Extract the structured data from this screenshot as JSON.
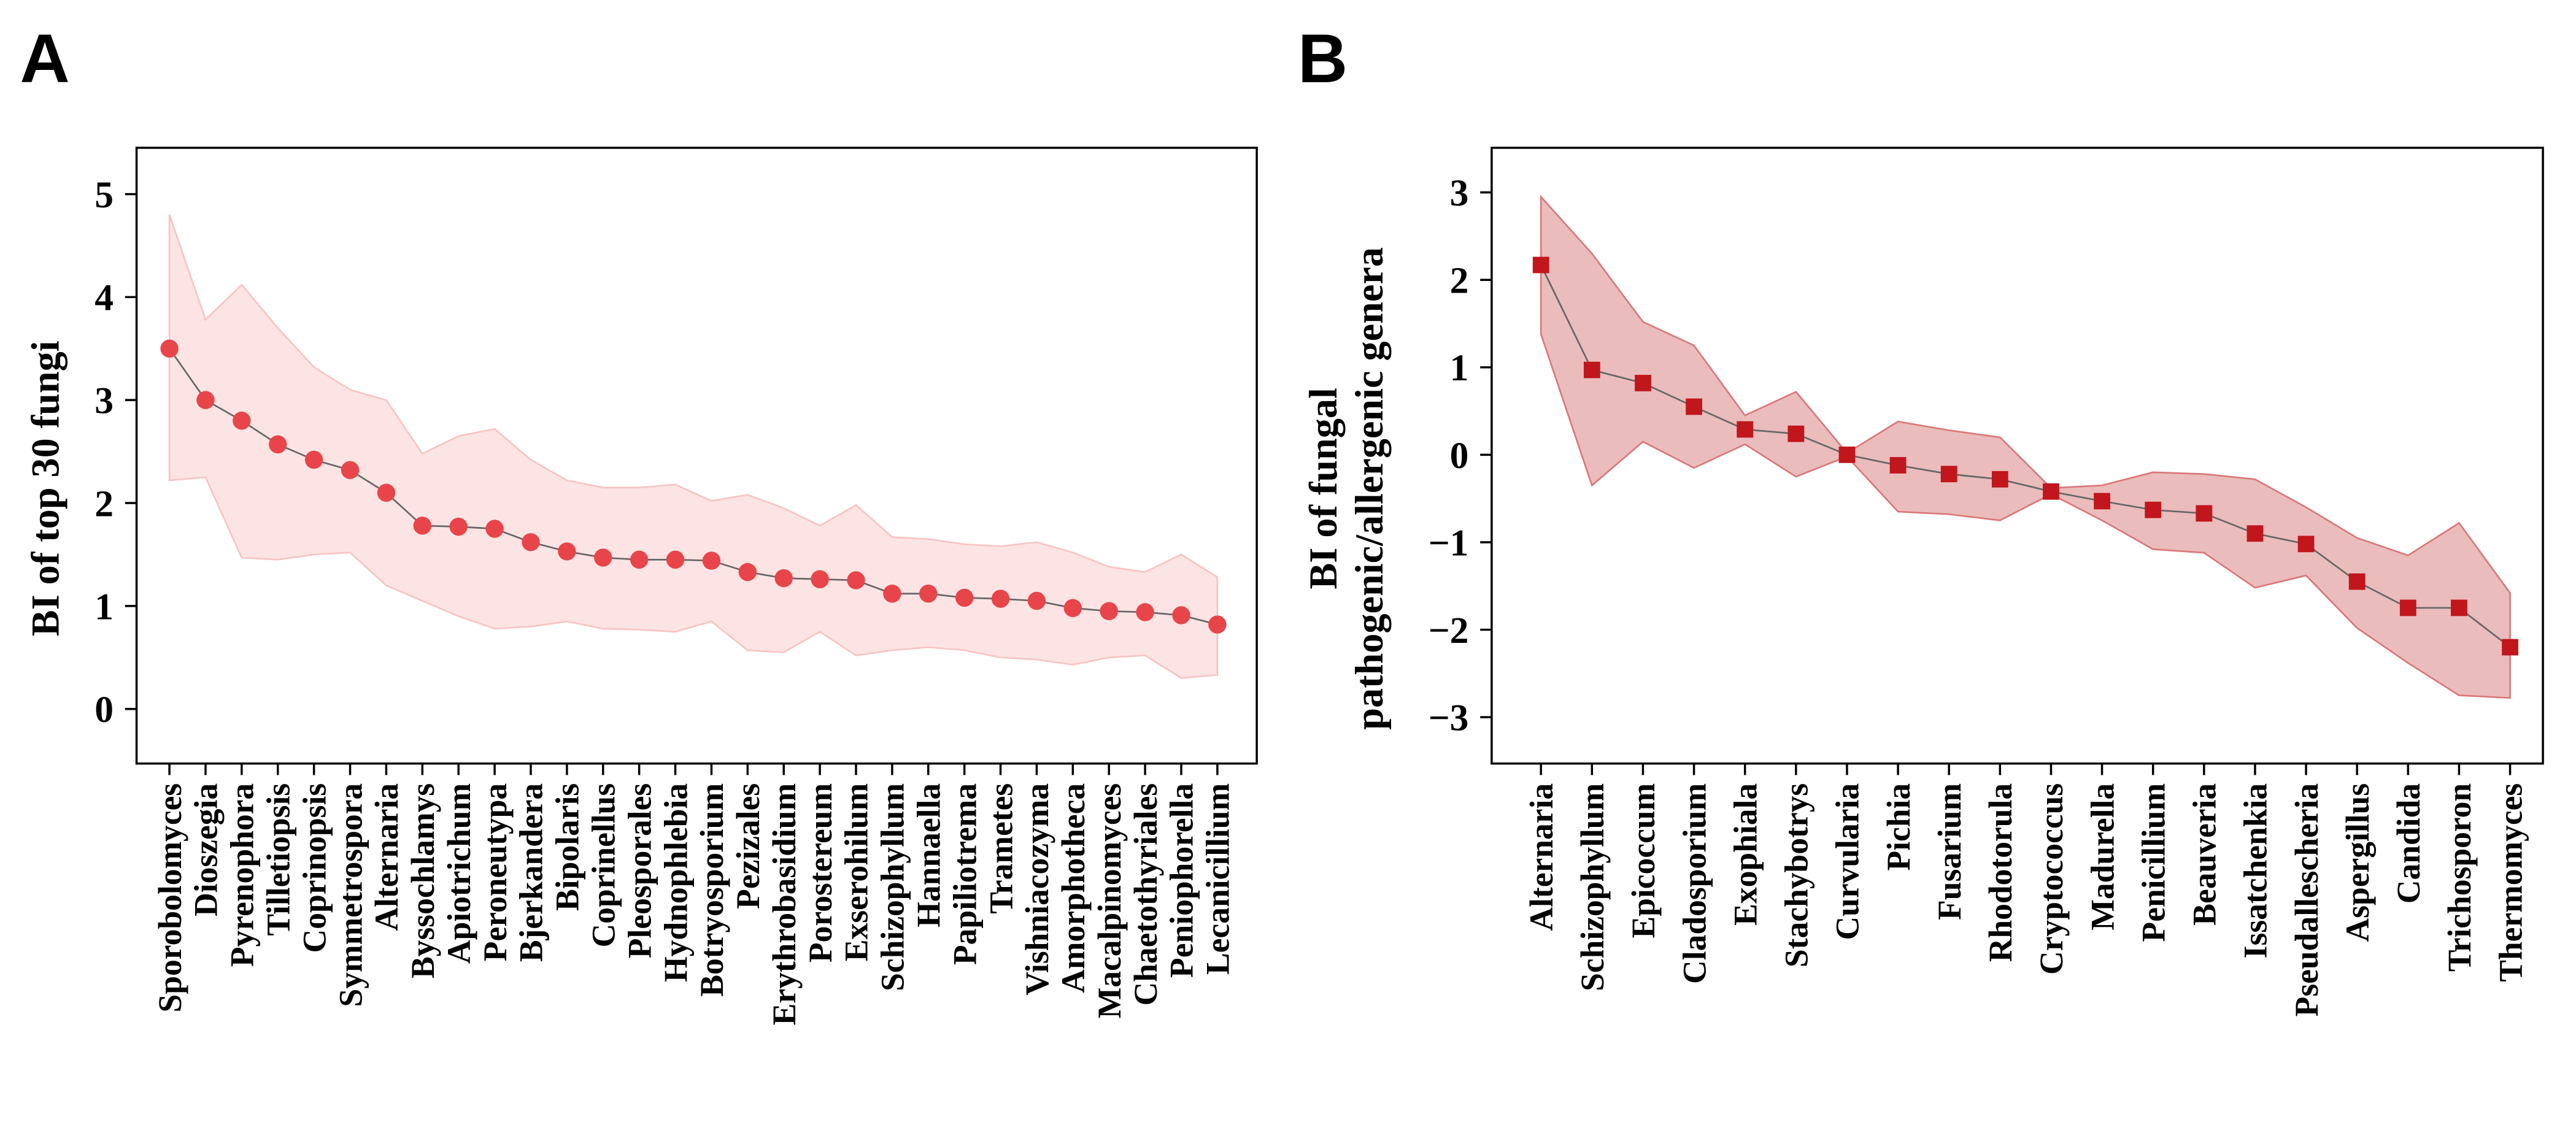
{
  "chart_data": [
    {
      "type": "line",
      "panel_label": "A",
      "ylabel": [
        "BI of top 30 fungi"
      ],
      "categories": [
        "Sporobolomyces",
        "Dioszegia",
        "Pyrenophora",
        "Tilletiopsis",
        "Coprinopsis",
        "Symmetrospora",
        "Alternaria",
        "Byssochlamys",
        "Apiotrichum",
        "Peroneutypa",
        "Bjerkandera",
        "Bipolaris",
        "Coprinellus",
        "Pleosporales",
        "Hydnophlebia",
        "Botryosporium",
        "Pezizales",
        "Erythrobasidium",
        "Porostereum",
        "Exserohilum",
        "Schizophyllum",
        "Hannaella",
        "Papiliotrema",
        "Trametes",
        "Vishniacozyma",
        "Amorphotheca",
        "Macalpinomyces",
        "Chaetothyriales",
        "Peniophorella",
        "Lecanicillium"
      ],
      "values": [
        3.5,
        3.0,
        2.8,
        2.57,
        2.42,
        2.32,
        2.1,
        1.78,
        1.77,
        1.75,
        1.62,
        1.53,
        1.47,
        1.45,
        1.45,
        1.44,
        1.33,
        1.27,
        1.26,
        1.25,
        1.12,
        1.12,
        1.08,
        1.07,
        1.05,
        0.98,
        0.95,
        0.94,
        0.91,
        0.82
      ],
      "band_upper": [
        4.8,
        3.78,
        4.12,
        3.7,
        3.32,
        3.1,
        3.0,
        2.48,
        2.65,
        2.72,
        2.42,
        2.22,
        2.15,
        2.15,
        2.18,
        2.02,
        2.08,
        1.95,
        1.78,
        1.98,
        1.67,
        1.65,
        1.6,
        1.58,
        1.62,
        1.52,
        1.38,
        1.33,
        1.5,
        1.28
      ],
      "band_lower": [
        2.22,
        2.25,
        1.47,
        1.45,
        1.5,
        1.52,
        1.2,
        1.05,
        0.9,
        0.78,
        0.8,
        0.85,
        0.78,
        0.77,
        0.75,
        0.85,
        0.57,
        0.55,
        0.75,
        0.52,
        0.57,
        0.6,
        0.57,
        0.5,
        0.48,
        0.43,
        0.5,
        0.52,
        0.3,
        0.33
      ],
      "color": "#e8454a",
      "marker": "circle",
      "band_color": "#fde4e4",
      "band_edge": "#f7c4c4",
      "ylim": [
        -0.53,
        5.45
      ],
      "yticks": [
        0,
        1,
        2,
        3,
        4,
        5
      ]
    },
    {
      "type": "line",
      "panel_label": "B",
      "ylabel": [
        "BI of fungal",
        "pathogenic/allergenic genera"
      ],
      "categories": [
        "Alternaria",
        "Schizophyllum",
        "Epicoccum",
        "Cladosporium",
        "Exophiala",
        "Stachybotrys",
        "Curvularia",
        "Pichia",
        "Fusarium",
        "Rhodotorula",
        "Cryptococcus",
        "Madurella",
        "Penicillium",
        "Beauveria",
        "Issatchenkia",
        "Pseudallescheria",
        "Aspergillus",
        "Candida",
        "Trichosporon",
        "Thermomyces"
      ],
      "values": [
        2.17,
        0.97,
        0.82,
        0.55,
        0.29,
        0.24,
        0.0,
        -0.12,
        -0.22,
        -0.28,
        -0.42,
        -0.53,
        -0.63,
        -0.67,
        -0.9,
        -1.02,
        -1.45,
        -1.75,
        -1.75,
        -2.2
      ],
      "band_upper": [
        2.95,
        2.3,
        1.52,
        1.25,
        0.45,
        0.72,
        0.02,
        0.38,
        0.28,
        0.2,
        -0.38,
        -0.35,
        -0.2,
        -0.22,
        -0.28,
        -0.6,
        -0.95,
        -1.15,
        -0.78,
        -1.58
      ],
      "band_lower": [
        1.38,
        -0.35,
        0.15,
        -0.15,
        0.12,
        -0.25,
        -0.02,
        -0.65,
        -0.68,
        -0.75,
        -0.45,
        -0.75,
        -1.08,
        -1.12,
        -1.52,
        -1.38,
        -1.98,
        -2.38,
        -2.75,
        -2.78
      ],
      "color": "#c0161c",
      "marker": "square",
      "band_color": "#ebbcbc",
      "band_edge": "#d9787a",
      "ylim": [
        -3.53,
        3.51
      ],
      "yticks": [
        {
          "value": -3,
          "label": "−3"
        },
        {
          "value": -2,
          "label": "−2"
        },
        {
          "value": -1,
          "label": "−1"
        },
        0,
        1,
        2,
        3
      ]
    }
  ]
}
